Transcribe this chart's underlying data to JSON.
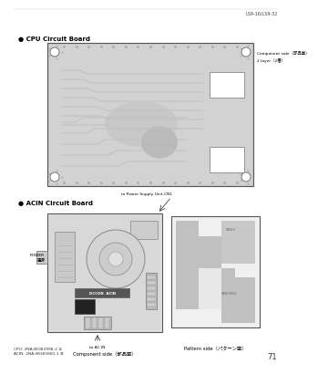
{
  "page_title": "LS9-16/LS9-32",
  "page_number": "71",
  "bg_color": "#ffffff",
  "section1_title": "● CPU Circuit Board",
  "section2_title": "● ACIN Circuit Board",
  "cpu_label_right1": "Component side（部品面）",
  "cpu_label_right2": "2 layer（2層）",
  "acin_label_bottom_left": "Component side（部品面）",
  "acin_label_bottom_right": "Pattern side（パターン面）",
  "acin_top_label": "to Power Supply Unit-CN1",
  "acin_power_label": "POWER\n電源",
  "acin_bottom_label": "to AC IN",
  "acin_center_label": "DCCON ACIN",
  "footer_cpu": "CPU： 2NA-WG82998-2 ②",
  "footer_acin": "ACIN： 2NA-WG83060-1 ④",
  "title_fontsize": 5.0,
  "label_fontsize": 3.8,
  "tiny_fontsize": 3.2,
  "footer_fontsize": 3.2
}
